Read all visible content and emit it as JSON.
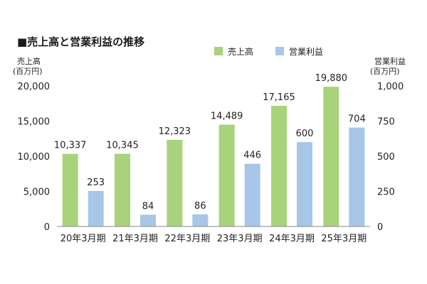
{
  "chart_data": {
    "type": "bar",
    "title": "■売上高と営業利益の推移",
    "categories": [
      "20年3月期",
      "21年3月期",
      "22年3月期",
      "23年3月期",
      "24年3月期",
      "25年3月期"
    ],
    "series": [
      {
        "name": "売上高",
        "axis": "left",
        "color": "#a8d37a",
        "values": [
          10337,
          10345,
          12323,
          14489,
          17165,
          19880
        ],
        "labels": [
          "10,337",
          "10,345",
          "12,323",
          "14,489",
          "17,165",
          "19,880"
        ]
      },
      {
        "name": "営業利益",
        "axis": "right",
        "color": "#a7c6e8",
        "values": [
          253,
          84,
          86,
          446,
          600,
          704
        ],
        "labels": [
          "253",
          "84",
          "86",
          "446",
          "600",
          "704"
        ]
      }
    ],
    "left_axis": {
      "label_line1": "売上高",
      "label_line2": "(百万円)",
      "ylim": [
        0,
        20000
      ],
      "ticks": [
        0,
        5000,
        10000,
        15000,
        20000
      ],
      "tick_labels": [
        "0",
        "5,000",
        "10,000",
        "15,000",
        "20,000"
      ]
    },
    "right_axis": {
      "label_line1": "営業利益",
      "label_line2": "(百万円)",
      "ylim": [
        0,
        1000
      ],
      "ticks": [
        0,
        250,
        500,
        750,
        1000
      ],
      "tick_labels": [
        "0",
        "250",
        "500",
        "750",
        "1,000"
      ]
    },
    "legend_position": "top-center",
    "grid": false
  }
}
